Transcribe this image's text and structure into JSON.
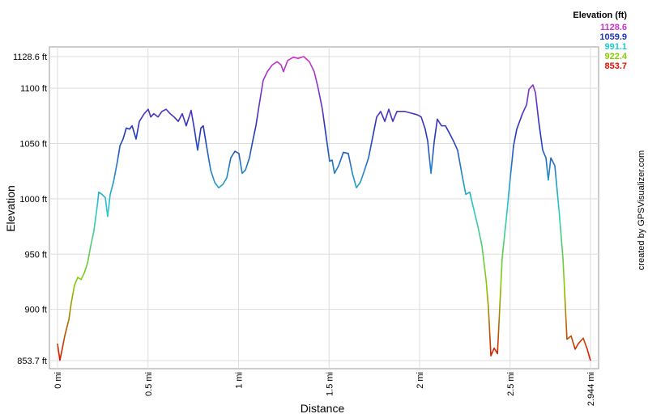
{
  "chart_data": {
    "type": "line",
    "x_label": "Distance",
    "y_label": "Elevation",
    "credit": "created by GPSVisualizer.com",
    "legend": {
      "title": "Elevation (ft)",
      "values": [
        1128.6,
        1059.9,
        991.1,
        922.4,
        853.7
      ],
      "colors": [
        "#cc33cc",
        "#2233bb",
        "#22cccc",
        "#88cc00",
        "#dd1100"
      ]
    },
    "xlim": [
      0,
      2.944
    ],
    "ylim": [
      853.7,
      1128.6
    ],
    "xticks": [
      {
        "value": 0,
        "label": "0 mi"
      },
      {
        "value": 0.5,
        "label": "0.5 mi"
      },
      {
        "value": 1,
        "label": "1 mi"
      },
      {
        "value": 1.5,
        "label": "1.5 mi"
      },
      {
        "value": 2,
        "label": "2 mi"
      },
      {
        "value": 2.5,
        "label": "2.5 mi"
      },
      {
        "value": 2.944,
        "label": "2.944 mi"
      }
    ],
    "yticks": [
      {
        "value": 853.7,
        "label": "853.7 ft"
      },
      {
        "value": 900,
        "label": "900 ft"
      },
      {
        "value": 950,
        "label": "950 ft"
      },
      {
        "value": 1000,
        "label": "1000 ft"
      },
      {
        "value": 1050,
        "label": "1050 ft"
      },
      {
        "value": 1100,
        "label": "1100 ft"
      },
      {
        "value": 1128.6,
        "label": "1128.6 ft"
      }
    ],
    "grid": true,
    "x": [
      0.0,
      0.013,
      0.027,
      0.04,
      0.063,
      0.076,
      0.094,
      0.112,
      0.13,
      0.148,
      0.166,
      0.183,
      0.201,
      0.219,
      0.228,
      0.246,
      0.264,
      0.277,
      0.291,
      0.309,
      0.331,
      0.345,
      0.362,
      0.38,
      0.398,
      0.412,
      0.434,
      0.452,
      0.479,
      0.501,
      0.515,
      0.532,
      0.555,
      0.577,
      0.6,
      0.622,
      0.644,
      0.667,
      0.689,
      0.711,
      0.738,
      0.756,
      0.774,
      0.792,
      0.805,
      0.823,
      0.846,
      0.868,
      0.89,
      0.913,
      0.935,
      0.957,
      0.98,
      1.002,
      1.02,
      1.038,
      1.06,
      1.078,
      1.096,
      1.114,
      1.136,
      1.159,
      1.186,
      1.213,
      1.235,
      1.248,
      1.271,
      1.302,
      1.329,
      1.36,
      1.391,
      1.418,
      1.441,
      1.463,
      1.485,
      1.503,
      1.517,
      1.53,
      1.553,
      1.579,
      1.606,
      1.629,
      1.651,
      1.673,
      1.696,
      1.718,
      1.74,
      1.763,
      1.785,
      1.808,
      1.83,
      1.852,
      1.875,
      1.919,
      1.964,
      1.987,
      2.009,
      2.031,
      2.045,
      2.063,
      2.081,
      2.098,
      2.121,
      2.143,
      2.166,
      2.188,
      2.21,
      2.233,
      2.255,
      2.277,
      2.3,
      2.322,
      2.345,
      2.367,
      2.38,
      2.394,
      2.412,
      2.43,
      2.443,
      2.456,
      2.479,
      2.501,
      2.519,
      2.537,
      2.568,
      2.591,
      2.604,
      2.626,
      2.64,
      2.658,
      2.68,
      2.698,
      2.711,
      2.725,
      2.747,
      2.77,
      2.792,
      2.814,
      2.837,
      2.859,
      2.877,
      2.904,
      2.926,
      2.944
    ],
    "values": [
      869,
      854,
      865,
      876,
      891,
      906,
      922,
      929,
      927,
      933,
      942,
      957,
      971,
      993,
      1006,
      1004,
      1001,
      984,
      1004,
      1015,
      1034,
      1048,
      1054,
      1064,
      1063,
      1066,
      1054,
      1070,
      1077,
      1081,
      1074,
      1077,
      1074,
      1079,
      1081,
      1077,
      1074,
      1070,
      1077,
      1066,
      1080,
      1063,
      1044,
      1064,
      1066,
      1048,
      1026,
      1015,
      1010,
      1013,
      1019,
      1037,
      1043,
      1041,
      1023,
      1026,
      1037,
      1052,
      1066,
      1085,
      1107,
      1115,
      1121,
      1124,
      1121,
      1115,
      1125,
      1128,
      1127,
      1128.6,
      1124,
      1115,
      1099,
      1081,
      1055,
      1034,
      1035,
      1023,
      1030,
      1042,
      1041,
      1023,
      1010,
      1015,
      1026,
      1037,
      1055,
      1074,
      1079,
      1070,
      1081,
      1070,
      1079,
      1079,
      1077,
      1076,
      1074,
      1063,
      1052,
      1023,
      1052,
      1072,
      1066,
      1066,
      1059,
      1052,
      1044,
      1023,
      1004,
      1006,
      990,
      975,
      957,
      927,
      902,
      858,
      865,
      860,
      902,
      946,
      982,
      1019,
      1048,
      1063,
      1077,
      1085,
      1099,
      1103,
      1096,
      1070,
      1044,
      1037,
      1017,
      1037,
      1030,
      990,
      946,
      873,
      876,
      864,
      869,
      874,
      864,
      853.7
    ]
  }
}
